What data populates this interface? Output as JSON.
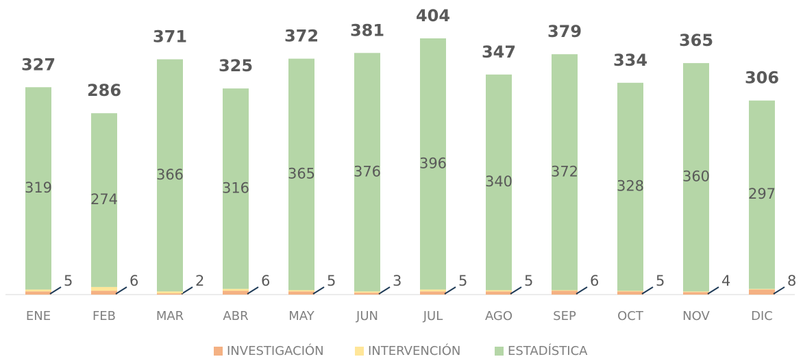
{
  "chart_data": {
    "type": "stacked_bar",
    "categories": [
      "ENE",
      "FEB",
      "MAR",
      "ABR",
      "MAY",
      "JUN",
      "JUL",
      "AGO",
      "SEP",
      "OCT",
      "NOV",
      "DIC"
    ],
    "series": [
      {
        "name": "INVESTIGACIÓN",
        "color": "#f4b183",
        "values": [
          5,
          6,
          2,
          6,
          5,
          3,
          5,
          5,
          6,
          5,
          4,
          8
        ]
      },
      {
        "name": "INTERVENCIÓN",
        "color": "#ffe699",
        "values": [
          3,
          6,
          3,
          3,
          2,
          2,
          3,
          2,
          1,
          1,
          1,
          1
        ]
      },
      {
        "name": "ESTADÍSTICA",
        "color": "#b5d6a7",
        "values": [
          319,
          274,
          366,
          316,
          365,
          376,
          396,
          340,
          372,
          328,
          360,
          297
        ]
      }
    ],
    "totals": [
      327,
      286,
      371,
      325,
      372,
      381,
      404,
      347,
      379,
      334,
      365,
      306
    ],
    "legend": "bottom"
  }
}
